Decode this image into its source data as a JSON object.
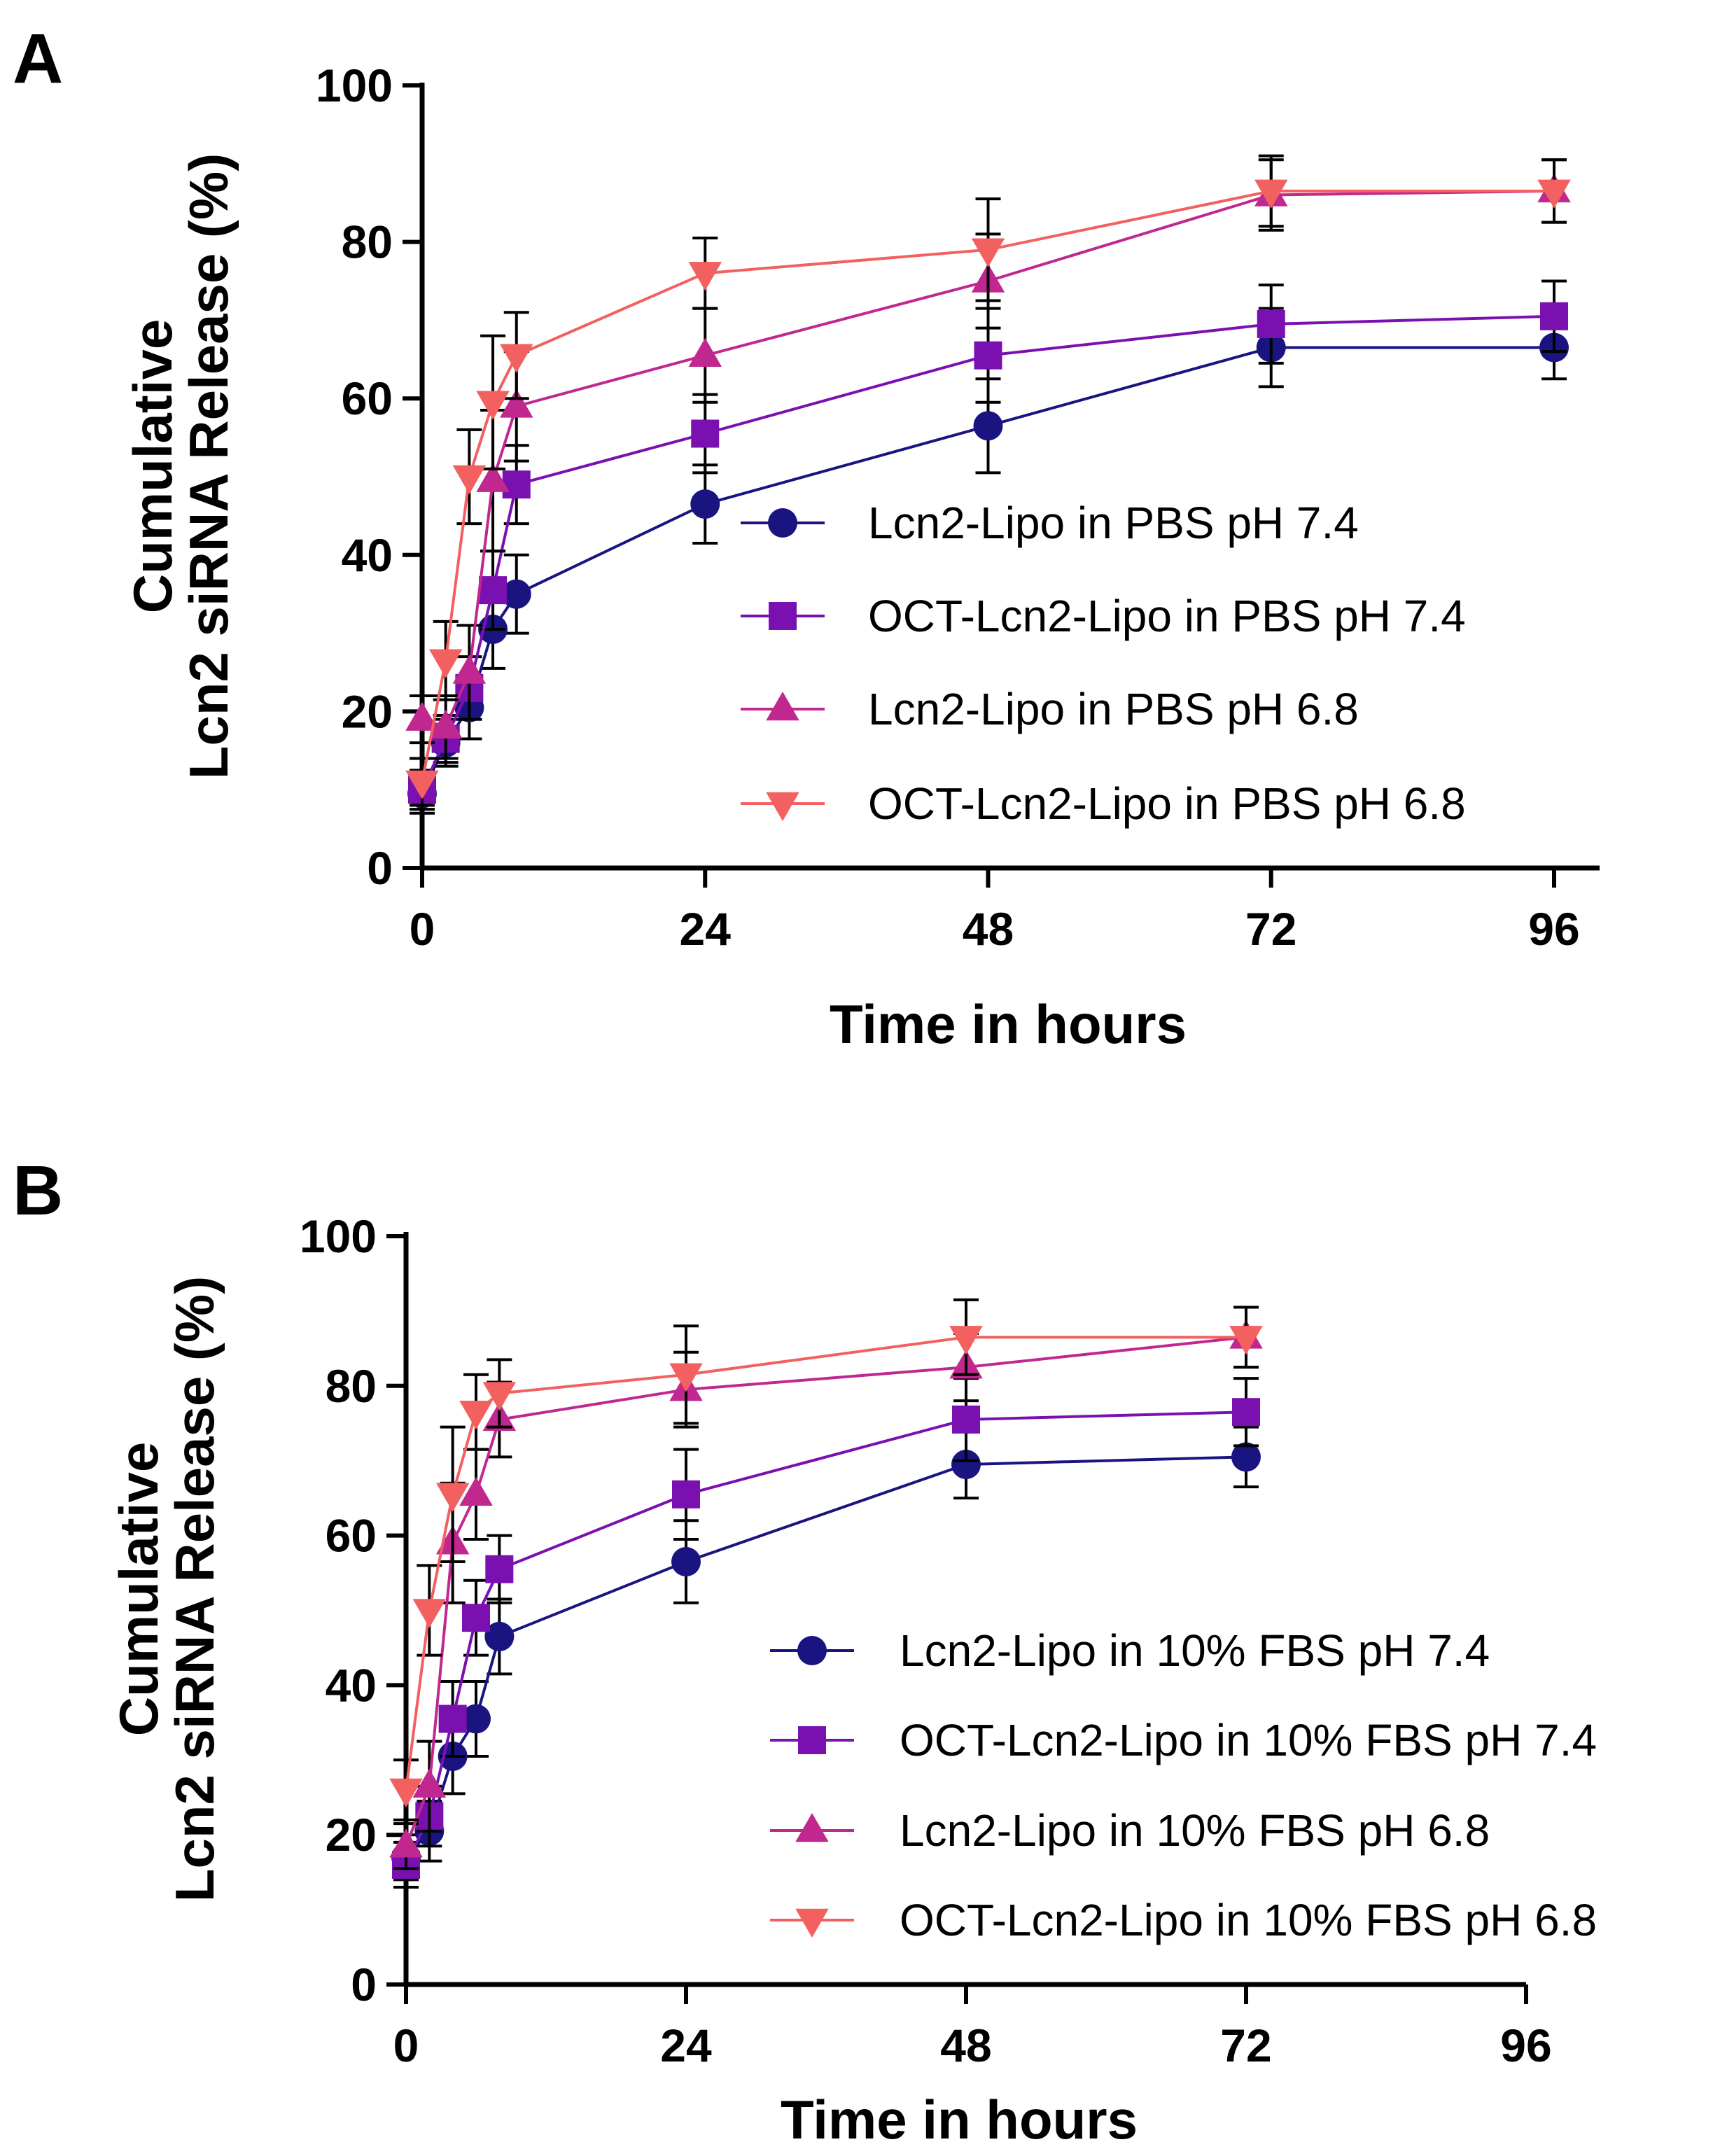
{
  "chart_data": [
    {
      "type": "line",
      "panel": "A",
      "xlabel": "Time in hours",
      "ylabel_line1": "Cumulative",
      "ylabel_line2": "Lcn2 siRNA Release (%)",
      "xlim": [
        0,
        96
      ],
      "ylim": [
        0,
        100
      ],
      "xticks": [
        0,
        24,
        48,
        72,
        96
      ],
      "yticks": [
        0,
        20,
        40,
        60,
        80,
        100
      ],
      "legend_position": "center-right",
      "grid": false,
      "series": [
        {
          "name": "Lcn2-Lipo in PBS pH 7.4",
          "color": "#1a1480",
          "marker": "circle",
          "x": [
            0,
            2,
            4,
            6,
            8,
            24,
            48,
            72,
            96
          ],
          "y": [
            9.5,
            16,
            20.5,
            30.5,
            35,
            46.5,
            56.5,
            66.5,
            66.5
          ],
          "err": [
            2.5,
            3,
            4,
            5,
            5,
            5,
            6,
            5,
            4
          ]
        },
        {
          "name": "OCT-Lcn2-Lipo in PBS pH 7.4",
          "color": "#7a10b0",
          "marker": "square",
          "x": [
            0,
            2,
            4,
            6,
            8,
            24,
            48,
            72,
            96
          ],
          "y": [
            10,
            16.5,
            23,
            35.5,
            49,
            55.5,
            65.5,
            69.5,
            70.5
          ],
          "err": [
            2.5,
            3,
            4,
            5,
            5,
            5,
            6,
            5,
            4.5
          ]
        },
        {
          "name": "Lcn2-Lipo in PBS pH 6.8",
          "color": "#c02890",
          "marker": "triangle-up",
          "x": [
            0,
            2,
            4,
            6,
            8,
            24,
            48,
            72,
            96
          ],
          "y": [
            19,
            18,
            25,
            49.5,
            59,
            65.5,
            75,
            86,
            86.5
          ],
          "err": [
            3,
            4,
            6,
            9,
            7,
            6,
            6,
            4.5,
            4
          ]
        },
        {
          "name": "OCT-Lcn2-Lipo in PBS pH 6.8",
          "color": "#f26060",
          "marker": "triangle-down",
          "x": [
            0,
            2,
            4,
            6,
            8,
            24,
            48,
            72,
            96
          ],
          "y": [
            11,
            26.5,
            50,
            59.5,
            65.5,
            76,
            79,
            86.5,
            86.5
          ],
          "err": [
            3,
            5,
            6,
            8.5,
            5.5,
            4.5,
            6.5,
            4.5,
            4
          ]
        }
      ]
    },
    {
      "type": "line",
      "panel": "B",
      "xlabel": "Time in hours",
      "ylabel_line1": "Cumulative",
      "ylabel_line2": "Lcn2 siRNA Release (%)",
      "xlim": [
        0,
        96
      ],
      "ylim": [
        0,
        100
      ],
      "xticks": [
        0,
        24,
        48,
        72,
        96
      ],
      "yticks": [
        0,
        20,
        40,
        60,
        80,
        100
      ],
      "legend_position": "bottom-right",
      "grid": false,
      "series": [
        {
          "name": "Lcn2-Lipo in 10% FBS pH 7.4",
          "color": "#1a1480",
          "marker": "circle",
          "x": [
            0,
            2,
            4,
            6,
            8,
            24,
            48,
            72
          ],
          "y": [
            17,
            20.5,
            30.5,
            35.5,
            46.5,
            56.5,
            69.5,
            70.5
          ],
          "err": [
            3,
            4,
            5,
            5,
            5,
            5.5,
            4.5,
            4
          ]
        },
        {
          "name": "OCT-Lcn2-Lipo in 10% FBS pH 7.4",
          "color": "#7a10b0",
          "marker": "square",
          "x": [
            0,
            2,
            4,
            6,
            8,
            24,
            48,
            72
          ],
          "y": [
            16,
            22.5,
            35.5,
            49,
            55.5,
            65.5,
            75.5,
            76.5
          ],
          "err": [
            3,
            4,
            5,
            5,
            4.5,
            6,
            5.5,
            4.5
          ]
        },
        {
          "name": "Lcn2-Lipo in 10% FBS pH 6.8",
          "color": "#c02890",
          "marker": "triangle-up",
          "x": [
            0,
            2,
            4,
            6,
            8,
            24,
            48,
            72
          ],
          "y": [
            18.5,
            26.5,
            59,
            65.5,
            75.5,
            79.5,
            82.5,
            86.5
          ],
          "err": [
            3,
            6,
            8,
            6,
            5,
            5,
            4.5,
            4
          ]
        },
        {
          "name": "OCT-Lcn2-Lipo in 10% FBS pH 6.8",
          "color": "#f26060",
          "marker": "triangle-down",
          "x": [
            0,
            2,
            4,
            6,
            8,
            24,
            48,
            72
          ],
          "y": [
            26,
            50,
            65.5,
            76.5,
            79,
            81.5,
            86.5,
            86.5
          ],
          "err": [
            4,
            6,
            9,
            5,
            4.5,
            6.5,
            5,
            4
          ]
        }
      ]
    }
  ]
}
